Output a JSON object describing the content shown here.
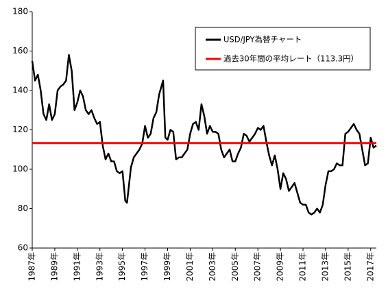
{
  "chart_data": {
    "type": "line",
    "x": [
      1987.0,
      1987.25,
      1987.5,
      1987.75,
      1988.0,
      1988.25,
      1988.5,
      1988.75,
      1989.0,
      1989.25,
      1989.5,
      1989.75,
      1990.0,
      1990.25,
      1990.5,
      1990.75,
      1991.0,
      1991.25,
      1991.5,
      1991.75,
      1992.0,
      1992.25,
      1992.5,
      1992.75,
      1993.0,
      1993.25,
      1993.5,
      1993.75,
      1994.0,
      1994.25,
      1994.5,
      1994.75,
      1995.0,
      1995.25,
      1995.4,
      1995.5,
      1995.75,
      1996.0,
      1996.25,
      1996.5,
      1996.75,
      1997.0,
      1997.25,
      1997.5,
      1997.75,
      1998.0,
      1998.25,
      1998.6,
      1998.8,
      1999.0,
      1999.25,
      1999.5,
      1999.75,
      2000.0,
      2000.25,
      2000.5,
      2000.75,
      2001.0,
      2001.25,
      2001.5,
      2001.75,
      2002.0,
      2002.25,
      2002.5,
      2002.75,
      2003.0,
      2003.25,
      2003.5,
      2003.75,
      2004.0,
      2004.25,
      2004.5,
      2004.75,
      2005.0,
      2005.25,
      2005.5,
      2005.75,
      2006.0,
      2006.25,
      2006.5,
      2006.75,
      2007.0,
      2007.25,
      2007.5,
      2007.75,
      2008.0,
      2008.25,
      2008.5,
      2008.75,
      2009.0,
      2009.25,
      2009.5,
      2009.75,
      2010.0,
      2010.25,
      2010.5,
      2010.75,
      2011.0,
      2011.25,
      2011.5,
      2011.75,
      2012.0,
      2012.25,
      2012.5,
      2012.75,
      2013.0,
      2013.25,
      2013.5,
      2013.75,
      2014.0,
      2014.25,
      2014.5,
      2014.75,
      2015.0,
      2015.25,
      2015.5,
      2015.75,
      2016.0,
      2016.25,
      2016.5,
      2016.75,
      2017.0,
      2017.25,
      2017.5
    ],
    "series": [
      {
        "name": "USD/JPY為替チャート",
        "color": "#000000",
        "values": [
          155,
          145,
          148,
          140,
          128,
          125,
          133,
          125,
          128,
          140,
          142,
          143,
          145,
          158,
          150,
          130,
          134,
          140,
          137,
          130,
          128,
          130,
          126,
          123,
          124,
          112,
          105,
          108,
          104,
          104,
          99,
          98,
          99,
          84,
          83,
          88,
          101,
          106,
          108,
          110,
          113,
          122,
          116,
          118,
          126,
          129,
          138,
          145,
          116,
          115,
          120,
          119,
          105,
          106,
          106,
          108,
          110,
          118,
          123,
          124,
          120,
          133,
          127,
          118,
          122,
          119,
          119,
          118,
          110,
          106,
          108,
          110,
          104,
          104,
          108,
          111,
          118,
          117,
          114,
          116,
          118,
          121,
          120,
          122,
          114,
          107,
          102,
          107,
          100,
          90,
          98,
          95,
          89,
          91,
          93,
          88,
          83,
          82,
          82,
          78,
          77,
          78,
          80,
          78,
          82,
          92,
          99,
          99,
          100,
          103,
          102,
          102,
          118,
          119,
          121,
          123,
          120,
          118,
          110,
          102,
          103,
          116,
          111,
          112
        ]
      }
    ],
    "average": {
      "name": "過去30年間の平均レート（113.3円）",
      "color": "#ff0000",
      "value": 113.3
    },
    "xlim": [
      1987,
      2017.5
    ],
    "xticks": [
      {
        "value": 1987,
        "label": "1987年"
      },
      {
        "value": 1989,
        "label": "1989年"
      },
      {
        "value": 1991,
        "label": "1991年"
      },
      {
        "value": 1993,
        "label": "1993年"
      },
      {
        "value": 1995,
        "label": "1995年"
      },
      {
        "value": 1997,
        "label": "1997年"
      },
      {
        "value": 1999,
        "label": "1999年"
      },
      {
        "value": 2001,
        "label": "2001年"
      },
      {
        "value": 2003,
        "label": "2003年"
      },
      {
        "value": 2005,
        "label": "2005年"
      },
      {
        "value": 2007,
        "label": "2007年"
      },
      {
        "value": 2009,
        "label": "2009年"
      },
      {
        "value": 2011,
        "label": "2011年"
      },
      {
        "value": 2013,
        "label": "2013年"
      },
      {
        "value": 2015,
        "label": "2015年"
      },
      {
        "value": 2017,
        "label": "2017年"
      }
    ],
    "ylim": [
      60,
      180
    ],
    "yticks": [
      60,
      80,
      100,
      120,
      140,
      160,
      180
    ]
  }
}
